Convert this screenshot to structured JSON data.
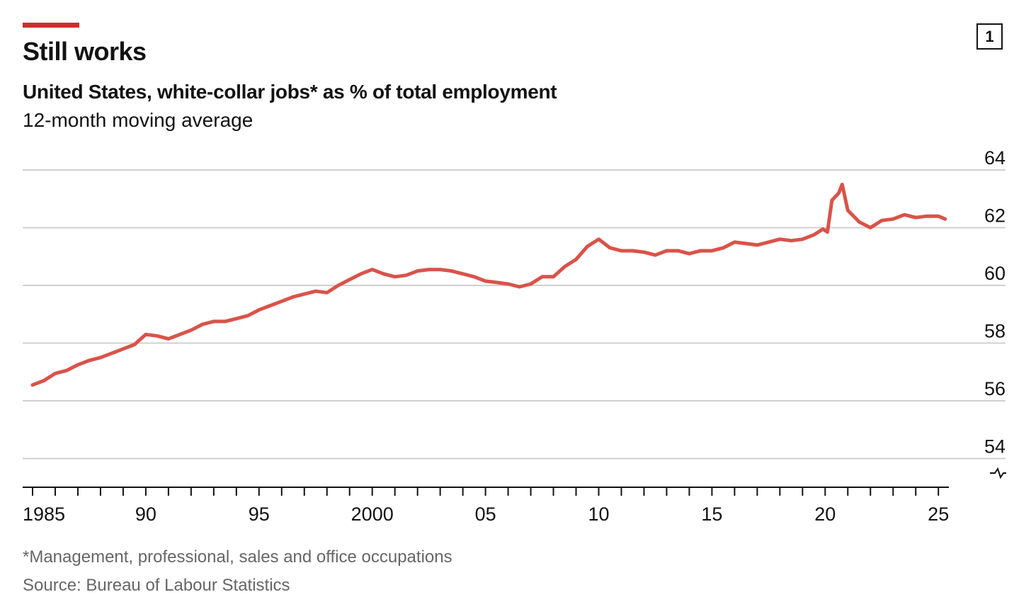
{
  "header": {
    "title": "Still works",
    "subtitle": "United States, white-collar jobs* as % of total employment",
    "subsubtitle": "12-month moving average",
    "chart_number": "1"
  },
  "colors": {
    "accent": "#C9302C",
    "line": "#D9534A",
    "grid": "#D0D0D0",
    "axis": "#121212"
  },
  "footer": {
    "footnote": "*Management, professional, sales and office occupations",
    "source": "Source: Bureau of Labour Statistics"
  },
  "chart_data": {
    "type": "line",
    "title": "United States, white-collar jobs* as % of total employment",
    "subtitle": "12-month moving average",
    "xlabel": "",
    "ylabel": "",
    "xlim": [
      1984.7,
      2025.4
    ],
    "ylim": [
      53,
      64
    ],
    "axis_break": true,
    "y_ticks": [
      54,
      56,
      58,
      60,
      62,
      64
    ],
    "y_tick_labels": [
      "54",
      "56",
      "58",
      "60",
      "62",
      "64"
    ],
    "x_tick_years": [
      1985,
      1990,
      1995,
      2000,
      2005,
      2010,
      2015,
      2020,
      2025
    ],
    "x_tick_labels": [
      "1985",
      "90",
      "95",
      "2000",
      "05",
      "10",
      "15",
      "20",
      "25"
    ],
    "grid": true,
    "legend": "none",
    "series": [
      {
        "name": "White-collar jobs, % of total employment",
        "points": [
          [
            1985.0,
            56.55
          ],
          [
            1985.5,
            56.7
          ],
          [
            1986.0,
            56.95
          ],
          [
            1986.5,
            57.05
          ],
          [
            1987.0,
            57.25
          ],
          [
            1987.5,
            57.4
          ],
          [
            1988.0,
            57.5
          ],
          [
            1988.5,
            57.65
          ],
          [
            1989.0,
            57.8
          ],
          [
            1989.5,
            57.95
          ],
          [
            1990.0,
            58.3
          ],
          [
            1990.5,
            58.25
          ],
          [
            1991.0,
            58.15
          ],
          [
            1991.5,
            58.3
          ],
          [
            1992.0,
            58.45
          ],
          [
            1992.5,
            58.65
          ],
          [
            1993.0,
            58.75
          ],
          [
            1993.5,
            58.75
          ],
          [
            1994.0,
            58.85
          ],
          [
            1994.5,
            58.95
          ],
          [
            1995.0,
            59.15
          ],
          [
            1995.5,
            59.3
          ],
          [
            1996.0,
            59.45
          ],
          [
            1996.5,
            59.6
          ],
          [
            1997.0,
            59.7
          ],
          [
            1997.5,
            59.8
          ],
          [
            1998.0,
            59.75
          ],
          [
            1998.5,
            60.0
          ],
          [
            1999.0,
            60.2
          ],
          [
            1999.5,
            60.4
          ],
          [
            2000.0,
            60.55
          ],
          [
            2000.5,
            60.4
          ],
          [
            2001.0,
            60.3
          ],
          [
            2001.5,
            60.35
          ],
          [
            2002.0,
            60.5
          ],
          [
            2002.5,
            60.55
          ],
          [
            2003.0,
            60.55
          ],
          [
            2003.5,
            60.5
          ],
          [
            2004.0,
            60.4
          ],
          [
            2004.5,
            60.3
          ],
          [
            2005.0,
            60.15
          ],
          [
            2005.5,
            60.1
          ],
          [
            2006.0,
            60.05
          ],
          [
            2006.5,
            59.95
          ],
          [
            2007.0,
            60.05
          ],
          [
            2007.5,
            60.3
          ],
          [
            2008.0,
            60.3
          ],
          [
            2008.5,
            60.65
          ],
          [
            2009.0,
            60.9
          ],
          [
            2009.5,
            61.35
          ],
          [
            2010.0,
            61.6
          ],
          [
            2010.5,
            61.3
          ],
          [
            2011.0,
            61.2
          ],
          [
            2011.5,
            61.2
          ],
          [
            2012.0,
            61.15
          ],
          [
            2012.5,
            61.05
          ],
          [
            2013.0,
            61.2
          ],
          [
            2013.5,
            61.2
          ],
          [
            2014.0,
            61.1
          ],
          [
            2014.5,
            61.2
          ],
          [
            2015.0,
            61.2
          ],
          [
            2015.5,
            61.3
          ],
          [
            2016.0,
            61.5
          ],
          [
            2016.5,
            61.45
          ],
          [
            2017.0,
            61.4
          ],
          [
            2017.5,
            61.5
          ],
          [
            2018.0,
            61.6
          ],
          [
            2018.5,
            61.55
          ],
          [
            2019.0,
            61.6
          ],
          [
            2019.5,
            61.75
          ],
          [
            2019.9,
            61.95
          ],
          [
            2020.1,
            61.85
          ],
          [
            2020.3,
            62.95
          ],
          [
            2020.6,
            63.2
          ],
          [
            2020.75,
            63.5
          ],
          [
            2021.0,
            62.6
          ],
          [
            2021.5,
            62.2
          ],
          [
            2022.0,
            62.0
          ],
          [
            2022.5,
            62.25
          ],
          [
            2023.0,
            62.3
          ],
          [
            2023.5,
            62.45
          ],
          [
            2024.0,
            62.35
          ],
          [
            2024.5,
            62.4
          ],
          [
            2025.0,
            62.4
          ],
          [
            2025.3,
            62.3
          ]
        ]
      }
    ]
  }
}
